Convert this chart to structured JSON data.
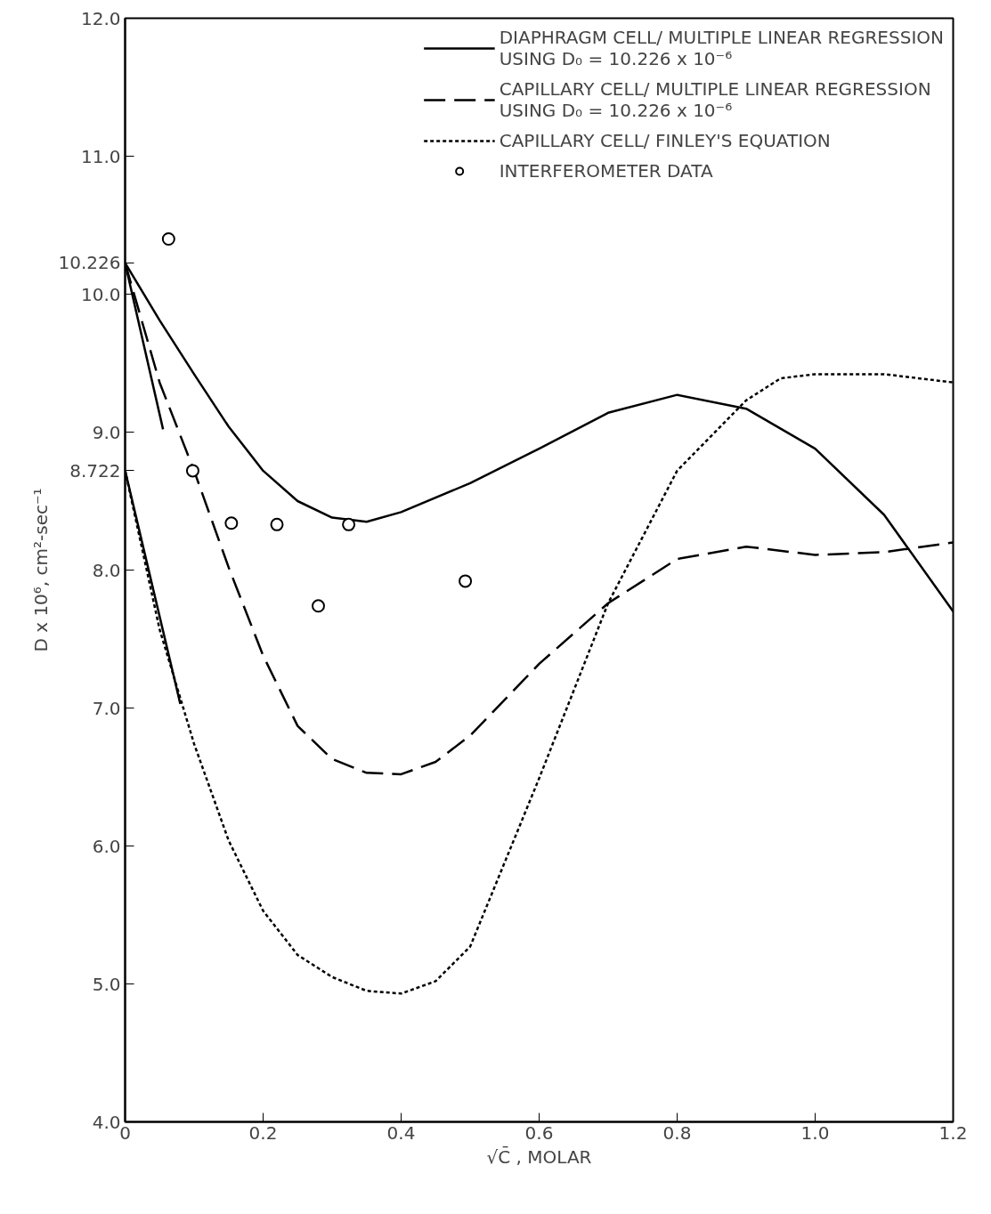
{
  "chart_data": {
    "type": "line",
    "xlabel": "√C̄ , MOLAR",
    "ylabel": "D x 10⁶, cm²-sec⁻¹",
    "xlim": [
      0,
      1.2
    ],
    "ylim": [
      4.0,
      12.0
    ],
    "xticks": [
      {
        "value": 0,
        "label": "0"
      },
      0.2,
      0.4,
      0.6,
      0.8,
      {
        "value": 1.0,
        "label": "1.0"
      },
      1.2
    ],
    "yticks": [
      {
        "value": 4,
        "label": "4.0"
      },
      {
        "value": 5,
        "label": "5.0"
      },
      {
        "value": 6,
        "label": "6.0"
      },
      {
        "value": 7,
        "label": "7.0"
      },
      {
        "value": 8,
        "label": "8.0"
      },
      8.722,
      {
        "value": 9,
        "label": "9.0"
      },
      {
        "value": 10,
        "label": "10.0"
      },
      10.226,
      {
        "value": 11,
        "label": "11.0"
      },
      {
        "value": 12,
        "label": "12.0"
      }
    ],
    "grid": false,
    "legend": "top right",
    "series": [
      {
        "name": "DIAPHRAGM CELL/ MULTIPLE LINEAR REGRESSION\nUSING D₀ = 10.226 x 10⁻⁶",
        "color": "#000000",
        "line_style": "solid",
        "marker": "none",
        "x": [
          0,
          0.05,
          0.1,
          0.15,
          0.2,
          0.25,
          0.3,
          0.35,
          0.4,
          0.5,
          0.6,
          0.7,
          0.8,
          0.9,
          1.0,
          1.1,
          1.2
        ],
        "values": [
          10.226,
          9.81,
          9.42,
          9.04,
          8.72,
          8.5,
          8.38,
          8.35,
          8.42,
          8.63,
          8.88,
          9.14,
          9.27,
          9.17,
          8.88,
          8.4,
          7.7
        ]
      },
      {
        "name": "CAPILLARY CELL/ MULTIPLE LINEAR REGRESSION\nUSING D₀ = 10.226 x 10⁻⁶",
        "color": "#000000",
        "line_style": "dashed",
        "marker": "none",
        "x": [
          0,
          0.05,
          0.1,
          0.15,
          0.2,
          0.25,
          0.3,
          0.35,
          0.4,
          0.45,
          0.5,
          0.6,
          0.7,
          0.8,
          0.9,
          1.0,
          1.1,
          1.2
        ],
        "values": [
          10.226,
          9.36,
          8.72,
          8.02,
          7.38,
          6.87,
          6.63,
          6.53,
          6.52,
          6.61,
          6.8,
          7.32,
          7.76,
          8.08,
          8.17,
          8.11,
          8.13,
          8.2
        ]
      },
      {
        "name": "CAPILLARY CELL/ FINLEY'S EQUATION",
        "color": "#000000",
        "line_style": "dotted",
        "marker": "none",
        "x": [
          0,
          0.05,
          0.1,
          0.15,
          0.2,
          0.25,
          0.3,
          0.35,
          0.4,
          0.45,
          0.5,
          0.6,
          0.7,
          0.8,
          0.9,
          0.95,
          1.0,
          1.1,
          1.2
        ],
        "values": [
          8.722,
          7.57,
          6.74,
          6.04,
          5.53,
          5.21,
          5.05,
          4.95,
          4.93,
          5.02,
          5.27,
          6.49,
          7.76,
          8.72,
          9.23,
          9.39,
          9.42,
          9.42,
          9.36
        ]
      },
      {
        "name": "INTERFEROMETER DATA",
        "type": "scatter",
        "color": "#000000",
        "marker": "circle",
        "x": [
          0.063,
          0.098,
          0.154,
          0.22,
          0.28,
          0.324,
          0.493
        ],
        "values": [
          10.4,
          8.72,
          8.34,
          8.33,
          7.74,
          8.33,
          7.92
        ]
      },
      {
        "color": "#000000",
        "line_style": "solid",
        "marker": "none",
        "x": [
          0,
          0.055
        ],
        "values": [
          10.226,
          9.02
        ]
      },
      {
        "color": "#000000",
        "line_style": "solid",
        "marker": "none",
        "x": [
          0,
          0.08
        ],
        "values": [
          8.722,
          7.03
        ]
      }
    ]
  }
}
